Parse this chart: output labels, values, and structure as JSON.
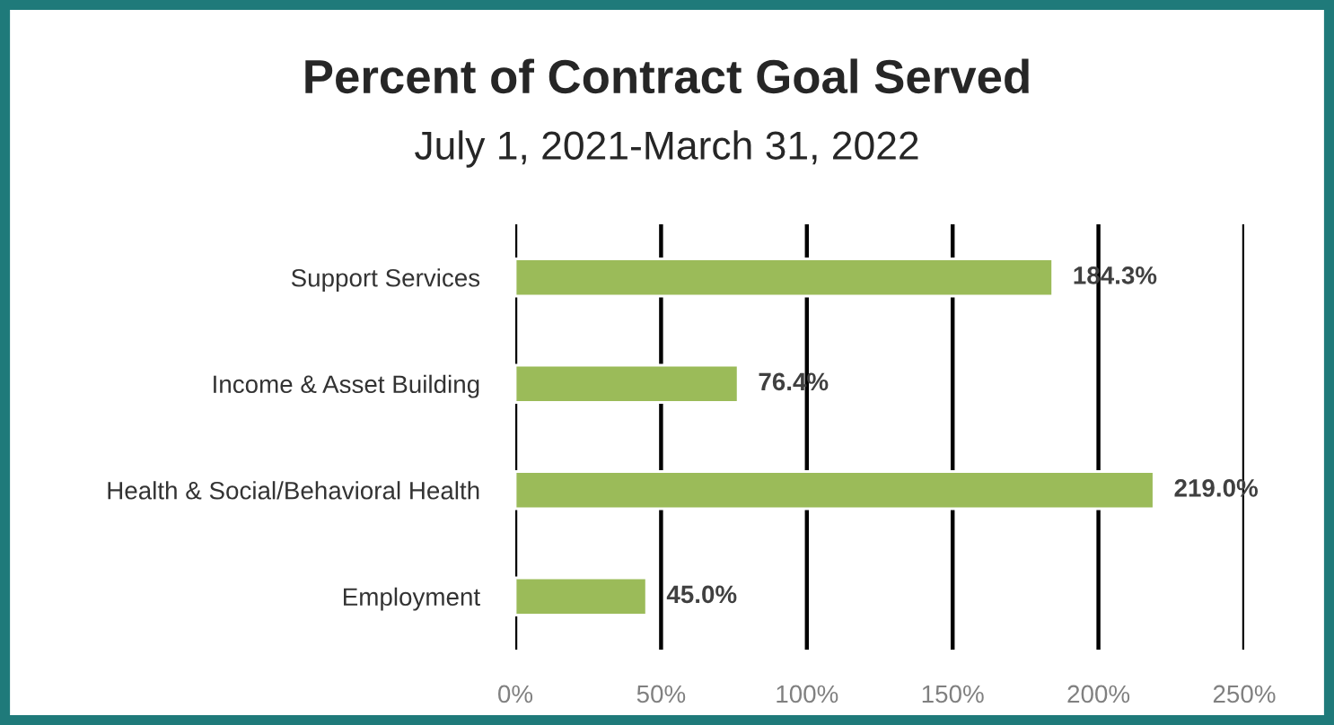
{
  "chart_data": {
    "type": "bar",
    "orientation": "horizontal",
    "title": "Percent of Contract Goal Served",
    "subtitle": "July 1, 2021-March 31, 2022",
    "categories": [
      "Support Services",
      "Income & Asset Building",
      "Health & Social/Behavioral Health",
      "Employment"
    ],
    "values": [
      184.3,
      76.4,
      219.0,
      45.0
    ],
    "color": "#9bbb59",
    "value_labels": [
      "184.3%",
      "76.4%",
      "219.0%",
      "45.0%"
    ],
    "xlim": [
      0,
      250
    ],
    "xticks": [
      {
        "value": 0,
        "label": "0%"
      },
      {
        "value": 50,
        "label": "50%"
      },
      {
        "value": 100,
        "label": "100%"
      },
      {
        "value": 150,
        "label": "150%"
      },
      {
        "value": 200,
        "label": "200%"
      },
      {
        "value": 250,
        "label": "250%"
      }
    ],
    "grid": "x",
    "legend": false
  }
}
